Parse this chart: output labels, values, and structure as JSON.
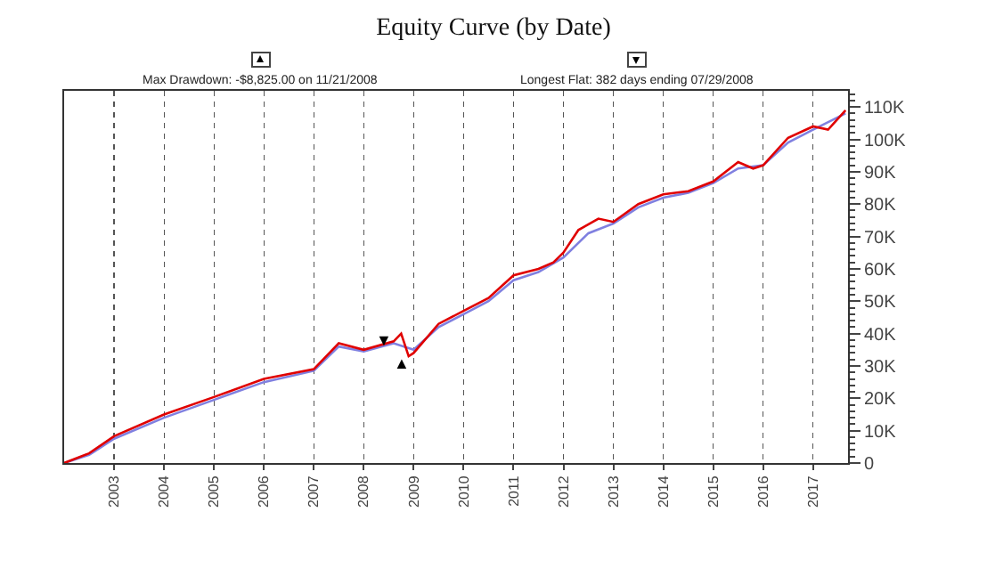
{
  "chart_data": {
    "type": "line",
    "title": "Equity Curve (by Date)",
    "annotations": [
      "Max Drawdown: -$8,825.00 on 11/21/2008",
      "Longest Flat: 382 days ending 07/29/2008",
      {
        "text": "▼",
        "x": 2008.55,
        "y": 38000
      },
      {
        "text": "▲",
        "x": 2008.9,
        "y": 31000
      }
    ],
    "series": [
      {
        "color": "#8080e0",
        "x": [
          2002.0,
          2002.5,
          2003.0,
          2004.0,
          2005.0,
          2006.0,
          2007.0,
          2007.5,
          2008.0,
          2008.6,
          2009.0,
          2009.5,
          2010.0,
          2010.5,
          2011.0,
          2011.5,
          2012.0,
          2012.5,
          2013.0,
          2013.5,
          2014.0,
          2014.5,
          2015.0,
          2015.5,
          2016.0,
          2016.5,
          2017.0,
          2017.65
        ],
        "values": [
          0,
          2500,
          7500,
          14000,
          19500,
          25000,
          28500,
          36000,
          34500,
          37000,
          35000,
          42000,
          46000,
          50000,
          56500,
          59000,
          63500,
          71000,
          74000,
          79000,
          82000,
          83500,
          86500,
          91000,
          92000,
          99000,
          103000,
          108000
        ]
      },
      {
        "color": "#e00000",
        "x": [
          2002.0,
          2002.5,
          2003.0,
          2004.0,
          2005.0,
          2006.0,
          2007.0,
          2007.5,
          2008.0,
          2008.6,
          2008.75,
          2008.9,
          2009.0,
          2009.5,
          2010.0,
          2010.5,
          2011.0,
          2011.5,
          2011.8,
          2012.0,
          2012.3,
          2012.7,
          2013.0,
          2013.5,
          2014.0,
          2014.5,
          2015.0,
          2015.5,
          2015.8,
          2016.0,
          2016.5,
          2017.0,
          2017.3,
          2017.65
        ],
        "values": [
          0,
          3000,
          8300,
          15000,
          20400,
          26000,
          29000,
          37000,
          35000,
          37600,
          40000,
          33000,
          34000,
          43000,
          47000,
          51000,
          58000,
          60000,
          62000,
          65000,
          72000,
          75500,
          74500,
          80000,
          83000,
          84000,
          87000,
          93000,
          91000,
          92000,
          100500,
          104000,
          103000,
          109000
        ]
      }
    ],
    "xlim": [
      2002,
      2017.7
    ],
    "xticks": [
      2003,
      2004,
      2005,
      2006,
      2007,
      2008,
      2009,
      2010,
      2011,
      2012,
      2013,
      2014,
      2015,
      2016,
      2017
    ],
    "ylim": [
      0,
      115000
    ],
    "yticks": [
      {
        "value": 0,
        "label": "0"
      },
      {
        "value": 10000,
        "label": "10K"
      },
      {
        "value": 20000,
        "label": "20K"
      },
      {
        "value": 30000,
        "label": "30K"
      },
      {
        "value": 40000,
        "label": "40K"
      },
      {
        "value": 50000,
        "label": "50K"
      },
      {
        "value": 60000,
        "label": "60K"
      },
      {
        "value": 70000,
        "label": "70K"
      },
      {
        "value": 80000,
        "label": "80K"
      },
      {
        "value": 90000,
        "label": "90K"
      },
      {
        "value": 100000,
        "label": "100K"
      },
      {
        "value": 110000,
        "label": "110K"
      }
    ],
    "grid": "x",
    "legend": false,
    "marker": "none",
    "line_style": "solid"
  }
}
